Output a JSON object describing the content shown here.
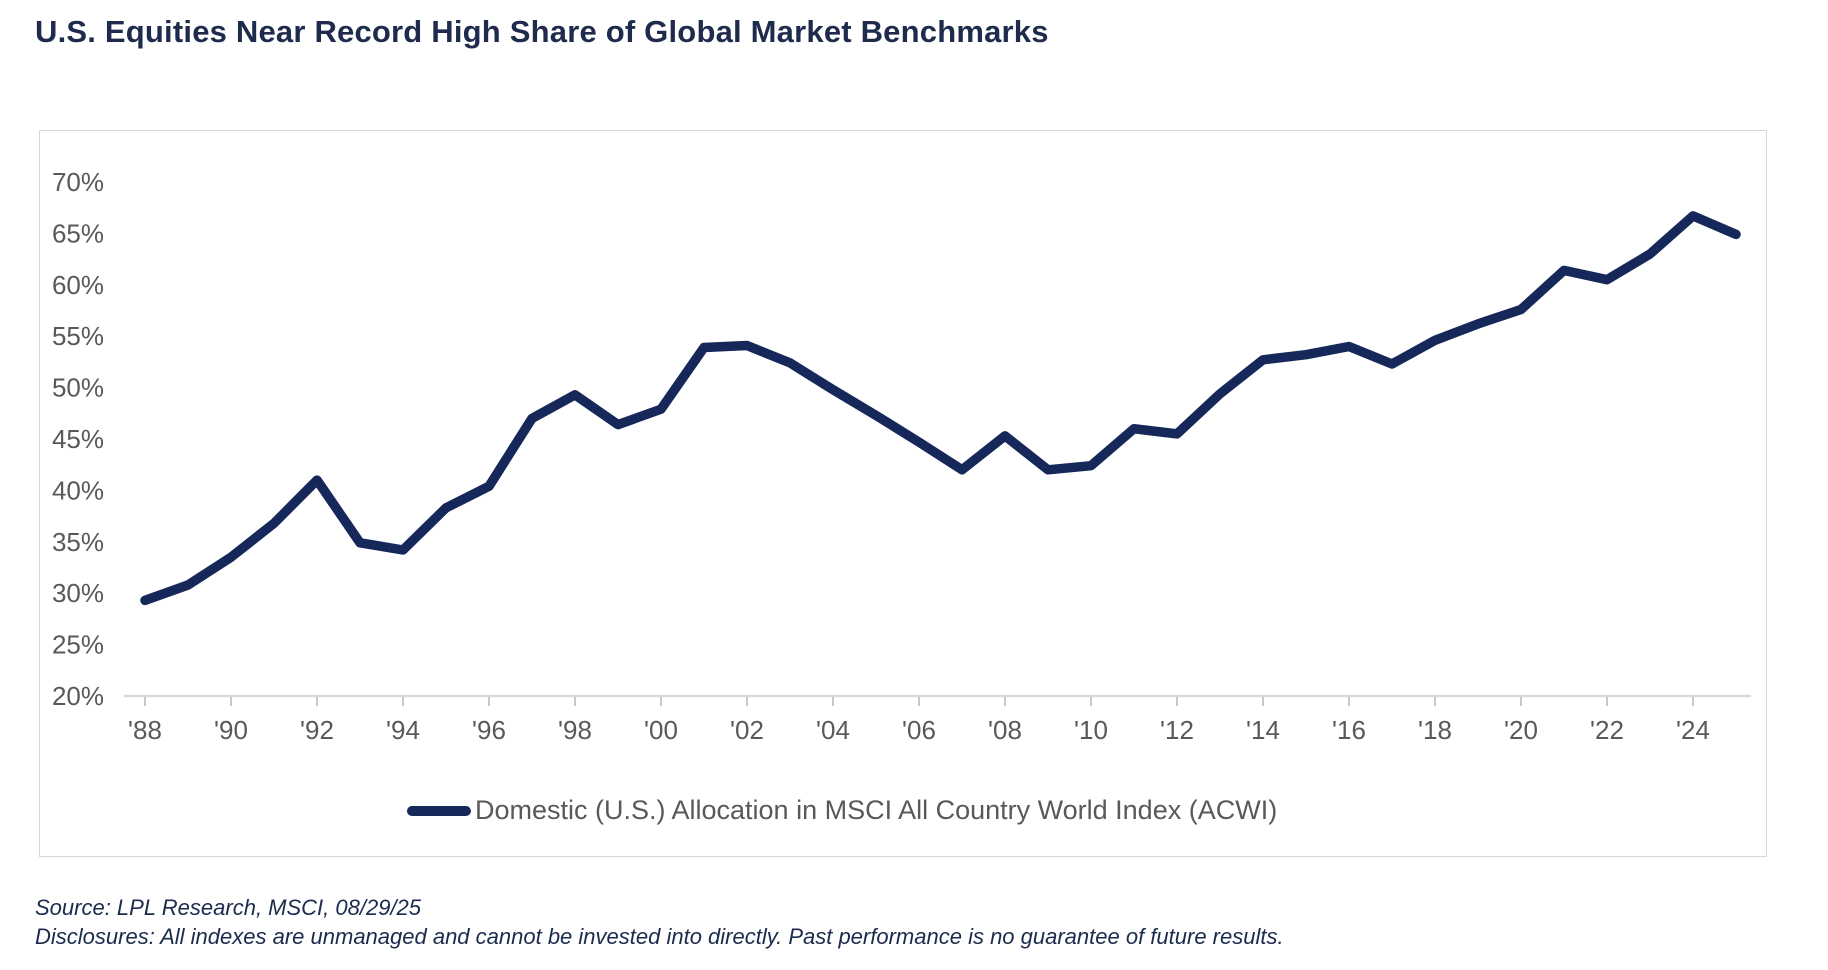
{
  "page": {
    "title": "U.S. Equities Near Record High Share of Global Market Benchmarks",
    "source_line": "Source: LPL Research, MSCI, 08/29/25",
    "disclosures_line": "Disclosures: All indexes are unmanaged and cannot be invested into directly. Past performance is no guarantee of future results."
  },
  "colors": {
    "line": "#16285A",
    "title_text": "#1E2B4D",
    "axis_text": "#595959",
    "axis_line": "#D9D9D9",
    "tick_mark": "#C8C8C8",
    "frame_border": "#D6D6D6",
    "footer_text": "#1B2B4D"
  },
  "chart_data": {
    "type": "line",
    "title": "U.S. Equities Near Record High Share of Global Market Benchmarks",
    "grid": false,
    "legend_position": "bottom",
    "x_axis": {
      "min": 1988,
      "max": 2025,
      "tick_years": [
        1988,
        1990,
        1992,
        1994,
        1996,
        1998,
        2000,
        2002,
        2004,
        2006,
        2008,
        2010,
        2012,
        2014,
        2016,
        2018,
        2020,
        2022,
        2024
      ],
      "tick_labels": [
        "'88",
        "'90",
        "'92",
        "'94",
        "'96",
        "'98",
        "'00",
        "'02",
        "'04",
        "'06",
        "'08",
        "'10",
        "'12",
        "'14",
        "'16",
        "'18",
        "'20",
        "'22",
        "'24"
      ]
    },
    "y_axis": {
      "min": 20,
      "max": 70,
      "tick_step": 5,
      "unit": "%",
      "tick_values": [
        70,
        65,
        60,
        55,
        50,
        45,
        40,
        35,
        30,
        25,
        20
      ],
      "tick_labels": [
        "70%",
        "65%",
        "60%",
        "55%",
        "50%",
        "45%",
        "40%",
        "35%",
        "30%",
        "25%",
        "20%"
      ]
    },
    "series": [
      {
        "name": "Domestic (U.S.) Allocation in MSCI All Country World Index (ACWI)",
        "x": [
          1988,
          1989,
          1990,
          1991,
          1992,
          1993,
          1994,
          1995,
          1996,
          1997,
          1998,
          1999,
          2000,
          2001,
          2002,
          2003,
          2004,
          2005,
          2006,
          2007,
          2008,
          2009,
          2010,
          2011,
          2012,
          2013,
          2014,
          2015,
          2016,
          2017,
          2018,
          2019,
          2020,
          2021,
          2022,
          2023,
          2024,
          2025
        ],
        "values": [
          29.3,
          30.8,
          33.5,
          36.8,
          41.0,
          34.9,
          34.2,
          38.3,
          40.4,
          47.0,
          49.3,
          46.4,
          47.9,
          53.9,
          54.1,
          52.4,
          49.8,
          47.3,
          44.7,
          42.0,
          45.3,
          42.0,
          42.4,
          46.0,
          45.5,
          49.4,
          52.7,
          53.2,
          54.0,
          52.3,
          54.6,
          56.2,
          57.6,
          61.4,
          60.5,
          63.0,
          66.7,
          64.9
        ]
      }
    ]
  }
}
